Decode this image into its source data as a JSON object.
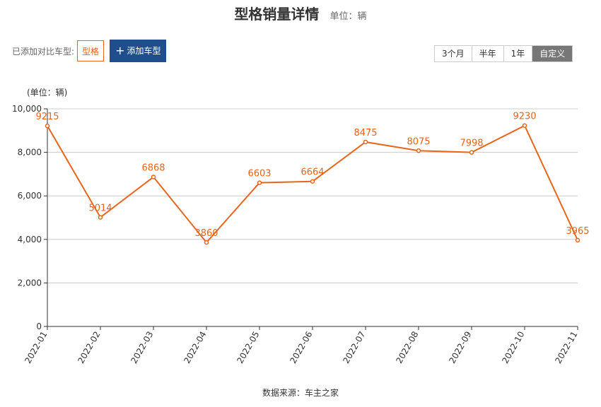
{
  "header": {
    "title": "型格销量详情",
    "unit": "单位：辆"
  },
  "compare": {
    "label": "已添加对比车型:",
    "model_tag": "型格",
    "add_button": "添加车型"
  },
  "range_buttons": [
    "3个月",
    "半年",
    "1年",
    "自定义"
  ],
  "active_range": "自定义",
  "footer": {
    "source": "数据来源：车主之家"
  },
  "colors": {
    "series": "#e8651a",
    "accent": "#1f4e8c",
    "grid": "#cccccc"
  },
  "chart_data": {
    "type": "line",
    "title": "型格销量详情",
    "ylabel": "(单位：辆)",
    "xlabel": "",
    "categories": [
      "2022-01",
      "2022-02",
      "2022-03",
      "2022-04",
      "2022-05",
      "2022-06",
      "2022-07",
      "2022-08",
      "2022-09",
      "2022-10",
      "2022-11"
    ],
    "series": [
      {
        "values": [
          9215,
          5014,
          6868,
          3860,
          6603,
          6664,
          8475,
          8075,
          7998,
          9230,
          3965
        ]
      }
    ],
    "ylim": [
      0,
      10000
    ],
    "yticks": [
      "0",
      "2,000",
      "4,000",
      "6,000",
      "8,000",
      "10,000"
    ],
    "grid": true,
    "legend": "none"
  }
}
